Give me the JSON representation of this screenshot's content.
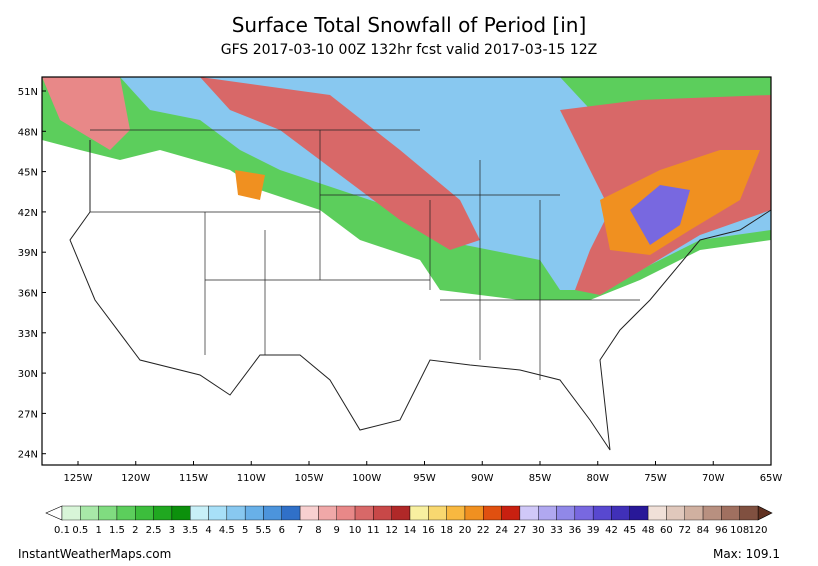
{
  "header": {
    "title": "Surface Total Snowfall of Period [in]",
    "subtitle": "GFS 2017-03-10 00Z 132hr fcst valid 2017-03-15 12Z"
  },
  "map": {
    "lat_labels": [
      "51N",
      "48N",
      "45N",
      "42N",
      "39N",
      "36N",
      "33N",
      "30N",
      "27N",
      "24N"
    ],
    "lon_labels": [
      "125W",
      "120W",
      "115W",
      "110W",
      "105W",
      "100W",
      "95W",
      "90W",
      "85W",
      "80W",
      "75W",
      "70W",
      "65W"
    ]
  },
  "colorbar": {
    "labels": [
      "0.1",
      "0.5",
      "1",
      "1.5",
      "2",
      "2.5",
      "3",
      "3.5",
      "4",
      "4.5",
      "5",
      "5.5",
      "6",
      "7",
      "8",
      "9",
      "10",
      "11",
      "12",
      "14",
      "16",
      "18",
      "20",
      "22",
      "24",
      "27",
      "30",
      "33",
      "36",
      "39",
      "42",
      "45",
      "48",
      "60",
      "72",
      "84",
      "96",
      "108",
      "120"
    ],
    "colors": [
      "#d8f5d8",
      "#a8e8a8",
      "#80dc80",
      "#5cce5c",
      "#3cbe3c",
      "#20a820",
      "#0c900c",
      "#c8f0f8",
      "#a8e0f8",
      "#88c8f0",
      "#68b0e8",
      "#4c94dc",
      "#3070c8",
      "#f8d0d0",
      "#f0a8a8",
      "#e88888",
      "#d86868",
      "#c84848",
      "#b02828",
      "#f8f0a0",
      "#f8d870",
      "#f8b840",
      "#f09020",
      "#e05010",
      "#c82010",
      "#d0c8f8",
      "#b0a8f0",
      "#9088e8",
      "#7868e0",
      "#5848d0",
      "#4030b8",
      "#281898",
      "#f0e0d8",
      "#e0c8bc",
      "#d0b0a0",
      "#b89080",
      "#a07060",
      "#805040"
    ],
    "low_color": "#ffffff",
    "high_color": "#603020"
  },
  "footer": {
    "source": "InstantWeatherMaps.com",
    "max": "Max: 109.1"
  }
}
